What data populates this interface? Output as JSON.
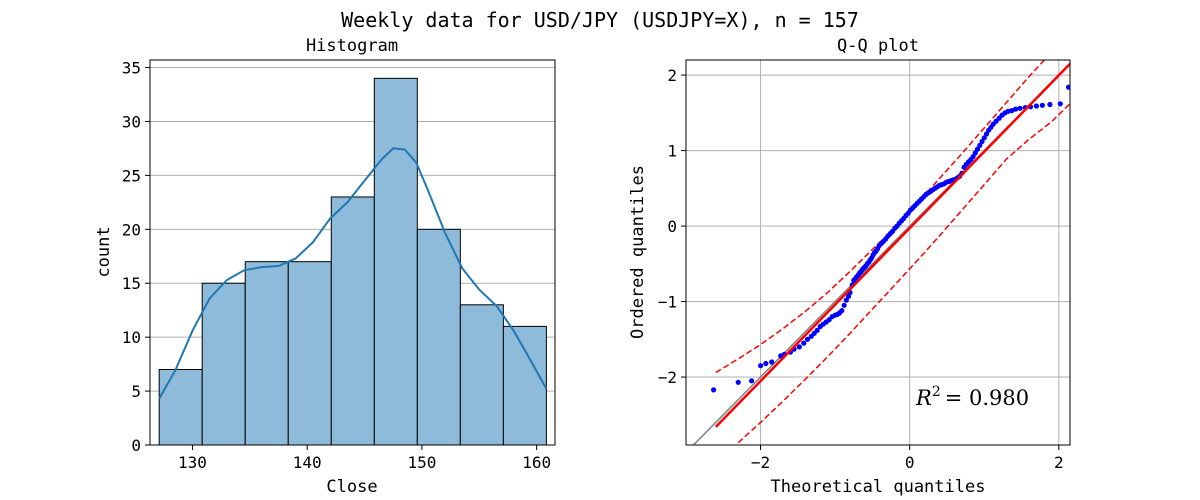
{
  "suptitle": "Weekly data for USD/JPY (USDJPY=X), n = 157",
  "colors": {
    "bar_fill": "#8fbbda",
    "bar_edge": "#000000",
    "kde_line": "#1f77b4",
    "points": "#0000ff",
    "fit_line": "#ff0000",
    "diag_line": "#808080",
    "grid": "#b0b0b0"
  },
  "chart_data": [
    {
      "type": "bar",
      "title": "Histogram",
      "xlabel": "Close",
      "ylabel": "count",
      "xlim": [
        126.3,
        161.6
      ],
      "ylim": [
        0,
        35.7
      ],
      "xticks": [
        130,
        140,
        150,
        160
      ],
      "yticks": [
        0,
        5,
        10,
        15,
        20,
        25,
        30,
        35
      ],
      "grid": "y",
      "bin_edges": [
        127.1,
        130.85,
        134.6,
        138.35,
        142.1,
        145.85,
        149.6,
        153.35,
        157.1,
        160.85
      ],
      "values": [
        7,
        15,
        17,
        17,
        23,
        34,
        20,
        13,
        11
      ],
      "kde": {
        "x": [
          127.1,
          128.5,
          130.0,
          131.5,
          133.0,
          134.5,
          136.0,
          137.5,
          139.0,
          140.5,
          142.0,
          143.5,
          145.0,
          146.5,
          147.5,
          148.5,
          149.5,
          150.5,
          152.0,
          153.5,
          155.0,
          156.5,
          158.0,
          159.5,
          160.85
        ],
        "y": [
          4.3,
          6.9,
          10.6,
          13.6,
          15.3,
          16.2,
          16.5,
          16.6,
          17.3,
          18.8,
          21.0,
          22.5,
          24.5,
          26.5,
          27.5,
          27.4,
          26.2,
          23.7,
          19.7,
          16.4,
          14.4,
          12.9,
          10.6,
          7.8,
          5.2
        ]
      }
    },
    {
      "type": "scatter",
      "title": "Q-Q plot",
      "xlabel": "Theoretical quantiles",
      "ylabel": "Ordered quantiles",
      "xlim": [
        -3.0,
        2.15
      ],
      "ylim": [
        -2.9,
        2.2
      ],
      "xticks": [
        -2,
        0,
        2
      ],
      "yticks": [
        -2,
        -1,
        0,
        1,
        2
      ],
      "grid": "both",
      "annotation": "= 0.980",
      "annotation_prefix": "R",
      "annotation_power": "2",
      "fit_line": {
        "x": [
          -2.6,
          2.2
        ],
        "y": [
          -2.66,
          2.2
        ]
      },
      "ci_upper": {
        "x": [
          -2.6,
          -2.3,
          -2.0,
          -1.7,
          -1.4,
          -1.1,
          -0.8,
          -0.5,
          -0.2,
          0.1,
          0.4,
          0.7,
          1.0,
          1.3,
          1.6,
          1.9,
          2.1
        ],
        "y": [
          -1.94,
          -1.76,
          -1.57,
          -1.36,
          -1.13,
          -0.88,
          -0.6,
          -0.31,
          -0.02,
          0.3,
          0.63,
          0.96,
          1.3,
          1.64,
          1.98,
          2.3,
          2.52
        ]
      },
      "ci_lower": {
        "x": [
          -2.3,
          -2.0,
          -1.7,
          -1.4,
          -1.1,
          -0.8,
          -0.5,
          -0.2,
          0.1,
          0.4,
          0.7,
          1.0,
          1.3,
          1.6,
          1.9,
          2.2
        ],
        "y": [
          -2.87,
          -2.6,
          -2.32,
          -2.03,
          -1.73,
          -1.42,
          -1.1,
          -0.78,
          -0.46,
          -0.13,
          0.21,
          0.55,
          0.89,
          1.15,
          1.38,
          1.67
        ]
      },
      "points": {
        "x": [
          -2.63,
          -2.3,
          -2.12,
          -2.0,
          -1.93,
          -1.85,
          -1.73,
          -1.68,
          -1.6,
          -1.55,
          -1.48,
          -1.42,
          -1.37,
          -1.32,
          -1.28,
          -1.24,
          -1.2,
          -1.16,
          -1.12,
          -1.08,
          -1.04,
          -1.0,
          -0.97,
          -0.94,
          -0.91,
          -0.88,
          -0.85,
          -0.82,
          -0.8,
          -0.77,
          -0.75,
          -0.73,
          -0.71,
          -0.69,
          -0.67,
          -0.65,
          -0.63,
          -0.61,
          -0.59,
          -0.57,
          -0.55,
          -0.53,
          -0.51,
          -0.49,
          -0.47,
          -0.45,
          -0.43,
          -0.41,
          -0.38,
          -0.35,
          -0.32,
          -0.29,
          -0.26,
          -0.23,
          -0.2,
          -0.17,
          -0.14,
          -0.11,
          -0.08,
          -0.05,
          -0.02,
          0.01,
          0.04,
          0.07,
          0.1,
          0.13,
          0.16,
          0.19,
          0.22,
          0.25,
          0.28,
          0.31,
          0.34,
          0.37,
          0.4,
          0.43,
          0.46,
          0.49,
          0.52,
          0.55,
          0.58,
          0.61,
          0.64,
          0.67,
          0.7,
          0.73,
          0.76,
          0.79,
          0.82,
          0.85,
          0.88,
          0.91,
          0.94,
          0.97,
          1.0,
          1.03,
          1.06,
          1.09,
          1.12,
          1.16,
          1.2,
          1.24,
          1.28,
          1.32,
          1.37,
          1.42,
          1.48,
          1.55,
          1.62,
          1.7,
          1.78,
          1.88,
          2.02,
          2.13
        ],
        "y": [
          -2.17,
          -2.07,
          -2.05,
          -1.85,
          -1.82,
          -1.8,
          -1.72,
          -1.7,
          -1.67,
          -1.63,
          -1.6,
          -1.55,
          -1.5,
          -1.46,
          -1.42,
          -1.38,
          -1.33,
          -1.3,
          -1.27,
          -1.24,
          -1.2,
          -1.18,
          -1.17,
          -1.15,
          -1.12,
          -1.05,
          -0.98,
          -0.93,
          -0.88,
          -0.78,
          -0.72,
          -0.7,
          -0.67,
          -0.65,
          -0.62,
          -0.6,
          -0.57,
          -0.55,
          -0.53,
          -0.5,
          -0.48,
          -0.45,
          -0.42,
          -0.38,
          -0.35,
          -0.33,
          -0.3,
          -0.26,
          -0.23,
          -0.2,
          -0.17,
          -0.13,
          -0.1,
          -0.07,
          -0.03,
          0.0,
          0.04,
          0.07,
          0.1,
          0.14,
          0.17,
          0.21,
          0.24,
          0.27,
          0.3,
          0.33,
          0.36,
          0.39,
          0.42,
          0.44,
          0.46,
          0.48,
          0.5,
          0.52,
          0.54,
          0.55,
          0.56,
          0.58,
          0.59,
          0.6,
          0.61,
          0.62,
          0.64,
          0.66,
          0.7,
          0.78,
          0.82,
          0.85,
          0.88,
          0.92,
          0.97,
          1.02,
          1.07,
          1.12,
          1.17,
          1.22,
          1.27,
          1.31,
          1.35,
          1.39,
          1.43,
          1.47,
          1.5,
          1.52,
          1.53,
          1.55,
          1.56,
          1.57,
          1.58,
          1.59,
          1.6,
          1.61,
          1.62,
          1.84
        ]
      }
    }
  ]
}
